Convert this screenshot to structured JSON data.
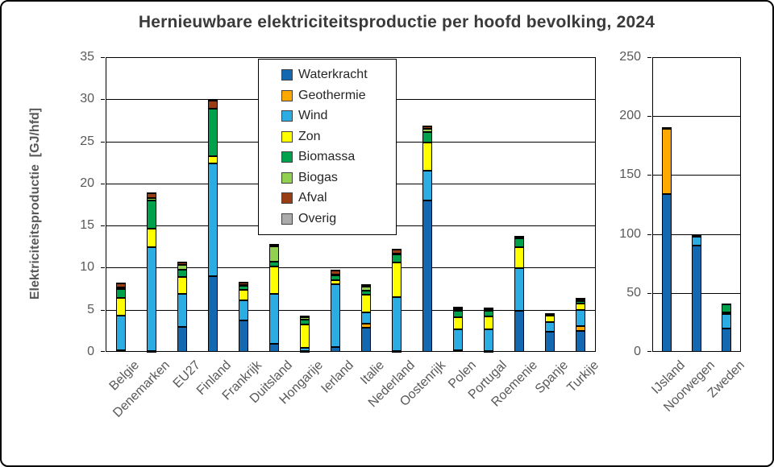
{
  "title": "Hernieuwbare elektriciteitsproductie per hoofd bevolking, 2024",
  "chart_data": {
    "type": "bar",
    "stacked": true,
    "title": "Hernieuwbare elektriciteitsproductie per hoofd bevolking, 2024",
    "ylabel": "Elektriciteitsproductie  [GJ/hfd]",
    "unit": "GJ/hfd",
    "grid": "horizontal",
    "legend_position": "upper-center-inside-left-panel",
    "legend": [
      {
        "label": "Waterkracht",
        "color": "#1268B1"
      },
      {
        "label": "Geothermie",
        "color": "#FFA800"
      },
      {
        "label": "Wind",
        "color": "#2BACE2"
      },
      {
        "label": "Zon",
        "color": "#FFFF00"
      },
      {
        "label": "Biomassa",
        "color": "#00A14B"
      },
      {
        "label": "Biogas",
        "color": "#92D050"
      },
      {
        "label": "Afval",
        "color": "#993E14"
      },
      {
        "label": "Overig",
        "color": "#ABABAB"
      }
    ],
    "left_panel": {
      "categories": [
        "Belgie",
        "Denemarken",
        "EU27",
        "Finland",
        "Frankrijk",
        "Duitsland",
        "Hongarije",
        "Ierland",
        "Italie",
        "Nederland",
        "Oostenrijk",
        "Polen",
        "Portugal",
        "Roemenie",
        "Spanje",
        "Turkije"
      ],
      "ylim": [
        0,
        35
      ],
      "yticks": [
        0,
        5,
        10,
        15,
        20,
        25,
        30,
        35
      ],
      "series": [
        {
          "name": "Waterkracht",
          "values": [
            0.2,
            0.05,
            3.0,
            9.0,
            3.7,
            1.0,
            0.05,
            0.55,
            2.9,
            0.1,
            18.0,
            0.15,
            0.1,
            4.9,
            2.4,
            2.5
          ]
        },
        {
          "name": "Geothermie",
          "values": [
            0,
            0,
            0,
            0,
            0,
            0,
            0,
            0,
            0.4,
            0,
            0,
            0,
            0,
            0,
            0,
            0.55
          ]
        },
        {
          "name": "Wind",
          "values": [
            4.1,
            12.4,
            3.9,
            13.4,
            2.4,
            5.9,
            0.4,
            7.5,
            1.4,
            6.4,
            3.55,
            2.55,
            2.6,
            5.0,
            1.1,
            1.9
          ]
        },
        {
          "name": "Zon",
          "values": [
            2.1,
            2.2,
            2.0,
            0.85,
            1.3,
            3.2,
            2.8,
            0.5,
            2.1,
            4.1,
            3.35,
            1.45,
            1.55,
            2.55,
            0.8,
            0.8
          ]
        },
        {
          "name": "Biomassa",
          "values": [
            1.05,
            3.3,
            0.85,
            5.6,
            0.45,
            0.6,
            0.55,
            0.5,
            0.45,
            0.95,
            1.2,
            0.7,
            0.65,
            1.0,
            0.1,
            0.25
          ]
        },
        {
          "name": "Biogas",
          "values": [
            0.2,
            0.3,
            0.55,
            0,
            0.1,
            1.8,
            0.35,
            0.15,
            0.45,
            0.15,
            0.35,
            0.25,
            0.2,
            0,
            0,
            0.2
          ]
        },
        {
          "name": "Afval",
          "values": [
            0.5,
            0.6,
            0.3,
            1.0,
            0.3,
            0.25,
            0.15,
            0.5,
            0.2,
            0.45,
            0.3,
            0.2,
            0.15,
            0.3,
            0.1,
            0.2
          ]
        },
        {
          "name": "Overig",
          "values": [
            0.05,
            0.1,
            0.15,
            0.05,
            0.05,
            0.05,
            0.05,
            0.1,
            0.1,
            0.1,
            0.1,
            0.05,
            0.05,
            0.05,
            0.05,
            0.05
          ]
        }
      ]
    },
    "right_panel": {
      "categories": [
        "IJsland",
        "Noorwegen",
        "Zweden"
      ],
      "ylim": [
        0,
        250
      ],
      "yticks": [
        0,
        50,
        100,
        150,
        200,
        250
      ],
      "series": [
        {
          "name": "Waterkracht",
          "values": [
            134,
            90,
            20
          ]
        },
        {
          "name": "Geothermie",
          "values": [
            55,
            0,
            0
          ]
        },
        {
          "name": "Wind",
          "values": [
            0.7,
            8,
            11.8
          ]
        },
        {
          "name": "Zon",
          "values": [
            0,
            0,
            2.0
          ]
        },
        {
          "name": "Biomassa",
          "values": [
            0.5,
            0.7,
            6.7
          ]
        },
        {
          "name": "Biogas",
          "values": [
            0,
            0,
            0
          ]
        },
        {
          "name": "Afval",
          "values": [
            0,
            0.4,
            0.4
          ]
        },
        {
          "name": "Overig",
          "values": [
            0.3,
            0.4,
            0
          ]
        }
      ]
    }
  }
}
